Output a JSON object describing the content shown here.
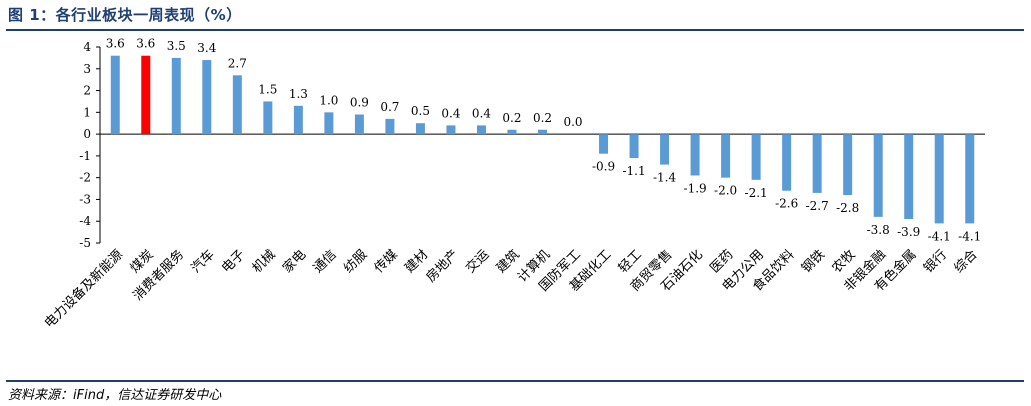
{
  "header": {
    "title": "图 1：各行业板块一周表现（%）"
  },
  "footer": {
    "source": "资料来源：iFind，信达证券研发中心"
  },
  "colors": {
    "bar": "#5b9bd5",
    "highlight": "#ff0000",
    "title": "#1f3f73"
  },
  "chart_data": {
    "type": "bar",
    "title": "",
    "xlabel": "",
    "ylabel": "",
    "ylim": [
      -5,
      4
    ],
    "yticks": [
      4,
      3,
      2,
      1,
      0,
      -1,
      -2,
      -3,
      -4,
      -5
    ],
    "categories": [
      "电力设备及新能源",
      "煤炭",
      "消费者服务",
      "汽车",
      "电子",
      "机械",
      "家电",
      "通信",
      "纺服",
      "传媒",
      "建材",
      "房地产",
      "交运",
      "建筑",
      "计算机",
      "国防军工",
      "基础化工",
      "轻工",
      "商贸零售",
      "石油石化",
      "医药",
      "电力公用",
      "食品饮料",
      "钢铁",
      "农牧",
      "非银金融",
      "有色金属",
      "银行",
      "综合"
    ],
    "values": [
      3.6,
      3.6,
      3.5,
      3.4,
      2.7,
      1.5,
      1.3,
      1.0,
      0.9,
      0.7,
      0.5,
      0.4,
      0.4,
      0.2,
      0.2,
      0.0,
      -0.9,
      -1.1,
      -1.4,
      -1.9,
      -2.0,
      -2.1,
      -2.6,
      -2.7,
      -2.8,
      -3.8,
      -3.9,
      -4.1,
      -4.1
    ],
    "value_labels": [
      "3.6",
      "3.6",
      "3.5",
      "3.4",
      "2.7",
      "1.5",
      "1.3",
      "1.0",
      "0.9",
      "0.7",
      "0.5",
      "0.4",
      "0.4",
      "0.2",
      "0.2",
      "0.0",
      "-0.9",
      "-1.1",
      "-1.4",
      "-1.9",
      "-2.0",
      "-2.1",
      "-2.6",
      "-2.7",
      "-2.8",
      "-3.8",
      "-3.9",
      "-4.1",
      "-4.1"
    ],
    "highlight_category": "煤炭",
    "grid": false,
    "legend": "none"
  }
}
